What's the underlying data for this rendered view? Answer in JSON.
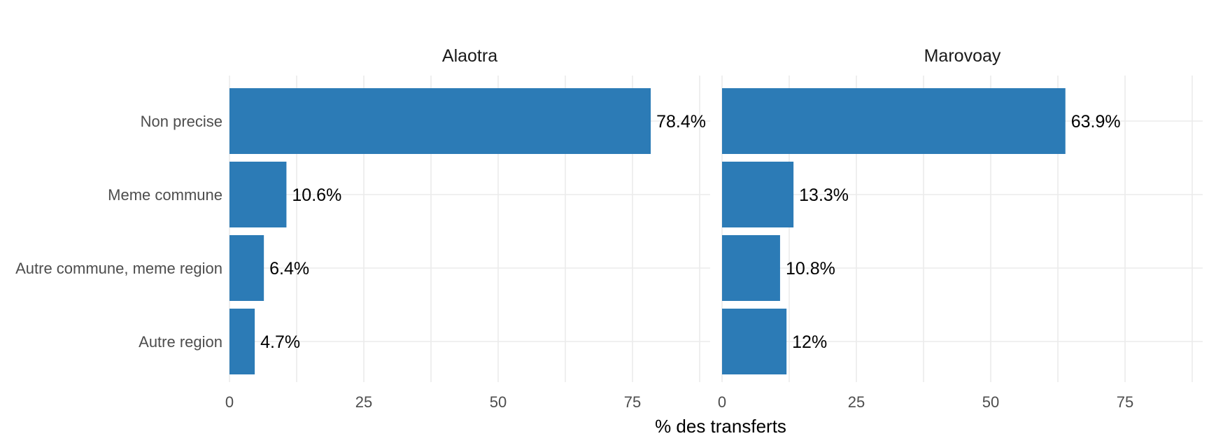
{
  "chart_data": {
    "type": "bar",
    "orientation": "horizontal",
    "xlabel": "% des transferts",
    "ylabel": "",
    "xlim": [
      0,
      90
    ],
    "x_ticks": [
      0,
      25,
      50,
      75
    ],
    "categories": [
      "Non precise",
      "Meme commune",
      "Autre commune, meme region",
      "Autre region"
    ],
    "bar_color": "#2c7bb6",
    "grid": true,
    "legend": "none",
    "panels": [
      {
        "title": "Alaotra",
        "values": [
          78.4,
          10.6,
          6.4,
          4.7
        ],
        "labels": [
          "78.4%",
          "10.6%",
          "6.4%",
          "4.7%"
        ]
      },
      {
        "title": "Marovoay",
        "values": [
          63.9,
          13.3,
          10.8,
          12
        ],
        "labels": [
          "63.9%",
          "13.3%",
          "10.8%",
          "12%"
        ]
      }
    ]
  }
}
